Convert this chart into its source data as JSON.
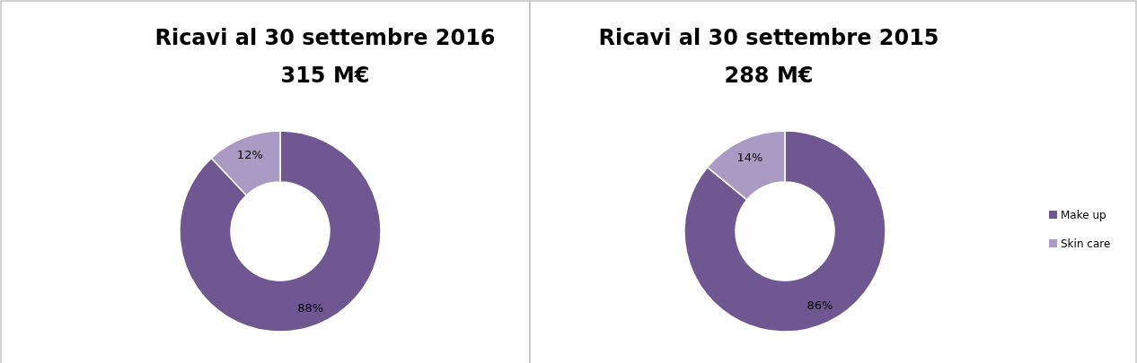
{
  "chart_data": [
    {
      "type": "donut",
      "title": "Ricavi al 30 settembre 2016",
      "subtitle": "315 M€",
      "categories": [
        null,
        null
      ],
      "values": [
        88,
        12
      ],
      "value_labels": [
        "88%",
        "12%"
      ],
      "colors": [
        "#6f5791",
        "#a99bc3"
      ],
      "legend": false
    },
    {
      "type": "donut",
      "title": "Ricavi al 30 settembre 2015",
      "subtitle": "288 M€",
      "categories": [
        "Make up",
        "Skin care"
      ],
      "values": [
        86,
        14
      ],
      "value_labels": [
        "86%",
        "14%"
      ],
      "colors": [
        "#6f5791",
        "#a99bc3"
      ],
      "legend": "right"
    }
  ]
}
